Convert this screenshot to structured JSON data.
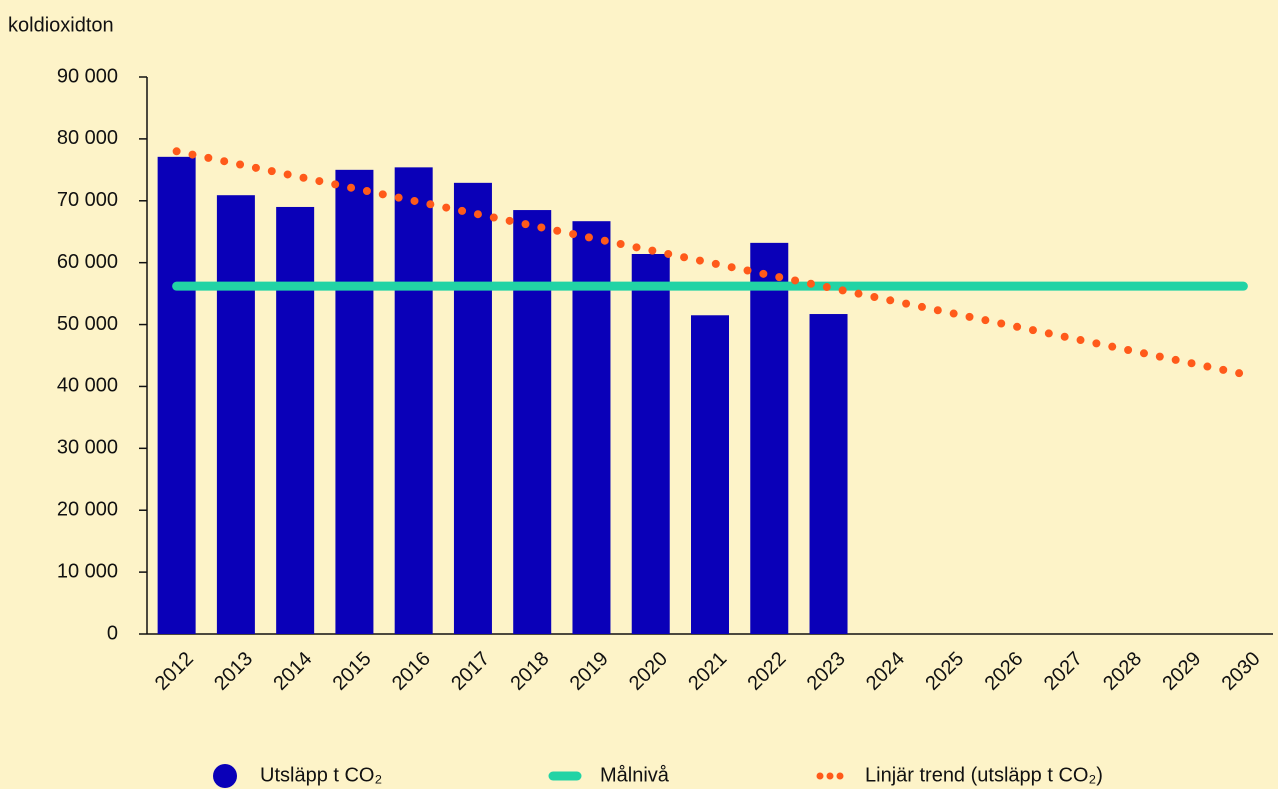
{
  "chart_data": {
    "type": "bar",
    "y_label": "koldioxidton",
    "categories": [
      "2012",
      "2013",
      "2014",
      "2015",
      "2016",
      "2017",
      "2018",
      "2019",
      "2020",
      "2021",
      "2022",
      "2023",
      "2024",
      "2025",
      "2026",
      "2027",
      "2028",
      "2029",
      "2030"
    ],
    "series": [
      {
        "name": "Utsläpp t CO₂",
        "type": "bar",
        "color": "#0a00b8",
        "values": [
          77100,
          70900,
          69000,
          75000,
          75400,
          72900,
          68500,
          66700,
          61400,
          51500,
          63200,
          51700,
          null,
          null,
          null,
          null,
          null,
          null,
          null
        ]
      },
      {
        "name": "Målnivå",
        "type": "line",
        "color": "#22d3a5",
        "values": [
          56200,
          56200,
          56200,
          56200,
          56200,
          56200,
          56200,
          56200,
          56200,
          56200,
          56200,
          56200,
          56200,
          56200,
          56200,
          56200,
          56200,
          56200,
          56200
        ]
      },
      {
        "name": "Linjär trend (utsläpp t CO₂)",
        "type": "dotted",
        "color": "#ff5a1a",
        "values": [
          78000,
          76000,
          74000,
          72000,
          70000,
          68000,
          66000,
          64000,
          62000,
          60000,
          58000,
          56000,
          54000,
          52000,
          50000,
          48000,
          46000,
          44000,
          42000
        ]
      }
    ],
    "ylim": [
      0,
      90000
    ],
    "yticks": [
      0,
      {
        "value": 10000,
        "label": "10 000"
      },
      {
        "value": 20000,
        "label": "20 000"
      },
      {
        "value": 30000,
        "label": "30 000"
      },
      {
        "value": 40000,
        "label": "40 000"
      },
      {
        "value": 50000,
        "label": "50 000"
      },
      {
        "value": 60000,
        "label": "60 000"
      },
      {
        "value": 70000,
        "label": "70 000"
      },
      {
        "value": 80000,
        "label": "80 000"
      },
      {
        "value": 90000,
        "label": "90 000"
      }
    ],
    "grid": false,
    "legend": "bottom"
  }
}
